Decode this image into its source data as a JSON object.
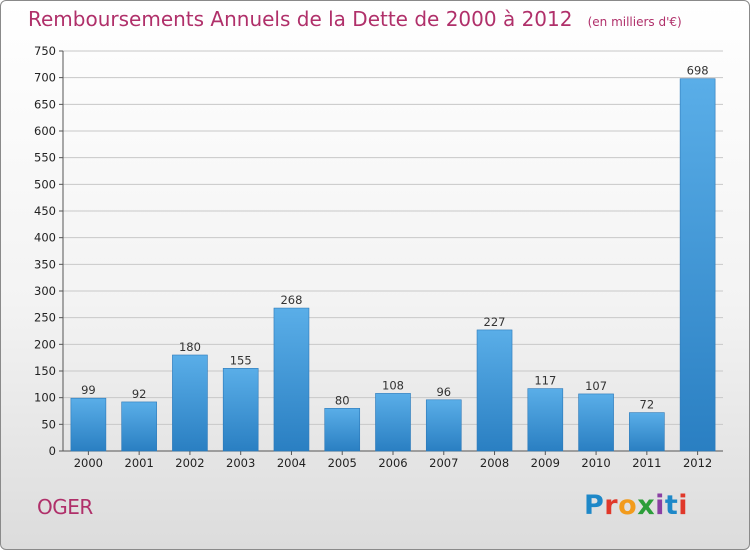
{
  "title": "Remboursements Annuels de la Dette de 2000 à 2012",
  "unit_note": "(en milliers d'€)",
  "commune": "OGER",
  "brand": {
    "letters": [
      "P",
      "r",
      "o",
      "x",
      "i",
      "t",
      "i"
    ]
  },
  "colors": {
    "title": "#b0306a",
    "bar_top": "#5aaee8",
    "bar_bottom": "#2a7fc2",
    "grid": "#c8c8c8"
  },
  "chart_data": {
    "type": "bar",
    "title": "Remboursements Annuels de la Dette de 2000 à 2012",
    "subtitle": "(en milliers d'€)",
    "categories": [
      "2000",
      "2001",
      "2002",
      "2003",
      "2004",
      "2005",
      "2006",
      "2007",
      "2008",
      "2009",
      "2010",
      "2011",
      "2012"
    ],
    "values": [
      99,
      92,
      180,
      155,
      268,
      80,
      108,
      96,
      227,
      117,
      107,
      72,
      698
    ],
    "ylim": [
      0,
      750
    ],
    "yticks": [
      0,
      50,
      100,
      150,
      200,
      250,
      300,
      350,
      400,
      450,
      500,
      550,
      600,
      650,
      700,
      750
    ],
    "grid": true,
    "data_labels": true
  }
}
